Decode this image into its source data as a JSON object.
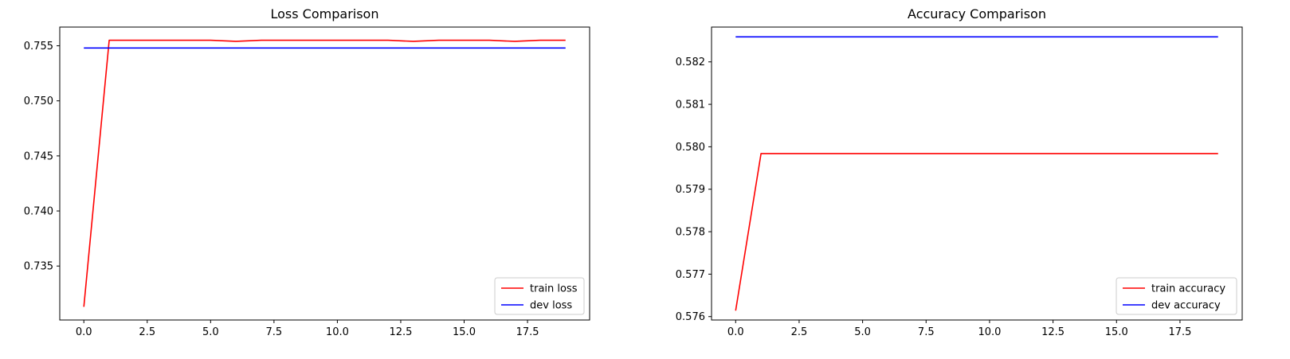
{
  "chart_data": [
    {
      "type": "line",
      "title": "Loss Comparison",
      "xlabel": "",
      "ylabel": "",
      "xlim": [
        -0.95,
        19.95
      ],
      "ylim": [
        0.7301,
        0.7567
      ],
      "xticks": [
        0.0,
        2.5,
        5.0,
        7.5,
        10.0,
        12.5,
        15.0,
        17.5
      ],
      "xtick_labels": [
        "0.0",
        "2.5",
        "5.0",
        "7.5",
        "10.0",
        "12.5",
        "15.0",
        "17.5"
      ],
      "yticks": [
        0.735,
        0.74,
        0.745,
        0.75,
        0.755
      ],
      "ytick_labels": [
        "0.735",
        "0.740",
        "0.745",
        "0.750",
        "0.755"
      ],
      "grid": false,
      "legend_position": "bottom-right",
      "x": [
        0,
        1,
        2,
        3,
        4,
        5,
        6,
        7,
        8,
        9,
        10,
        11,
        12,
        13,
        14,
        15,
        16,
        17,
        18,
        19
      ],
      "series": [
        {
          "name": "train loss",
          "color": "#ff0000",
          "values": [
            0.7313,
            0.7555,
            0.7555,
            0.7555,
            0.7555,
            0.7555,
            0.7554,
            0.7555,
            0.7555,
            0.7555,
            0.7555,
            0.7555,
            0.7555,
            0.7554,
            0.7555,
            0.7555,
            0.7555,
            0.7554,
            0.7555,
            0.7555
          ]
        },
        {
          "name": "dev loss",
          "color": "#0000ff",
          "values": [
            0.7548,
            0.7548,
            0.7548,
            0.7548,
            0.7548,
            0.7548,
            0.7548,
            0.7548,
            0.7548,
            0.7548,
            0.7548,
            0.7548,
            0.7548,
            0.7548,
            0.7548,
            0.7548,
            0.7548,
            0.7548,
            0.7548,
            0.7548
          ]
        }
      ]
    },
    {
      "type": "line",
      "title": "Accuracy Comparison",
      "xlabel": "",
      "ylabel": "",
      "xlim": [
        -0.95,
        19.95
      ],
      "ylim": [
        0.57592,
        0.58282
      ],
      "xticks": [
        0.0,
        2.5,
        5.0,
        7.5,
        10.0,
        12.5,
        15.0,
        17.5
      ],
      "xtick_labels": [
        "0.0",
        "2.5",
        "5.0",
        "7.5",
        "10.0",
        "12.5",
        "15.0",
        "17.5"
      ],
      "yticks": [
        0.576,
        0.577,
        0.578,
        0.579,
        0.58,
        0.581,
        0.582
      ],
      "ytick_labels": [
        "0.576",
        "0.577",
        "0.578",
        "0.579",
        "0.580",
        "0.581",
        "0.582"
      ],
      "grid": false,
      "legend_position": "bottom-right",
      "x": [
        0,
        1,
        2,
        3,
        4,
        5,
        6,
        7,
        8,
        9,
        10,
        11,
        12,
        13,
        14,
        15,
        16,
        17,
        18,
        19
      ],
      "series": [
        {
          "name": "train accuracy",
          "color": "#ff0000",
          "values": [
            0.57614,
            0.57984,
            0.57984,
            0.57984,
            0.57984,
            0.57984,
            0.57984,
            0.57984,
            0.57984,
            0.57984,
            0.57984,
            0.57984,
            0.57984,
            0.57984,
            0.57984,
            0.57984,
            0.57984,
            0.57984,
            0.57984,
            0.57984
          ]
        },
        {
          "name": "dev accuracy",
          "color": "#0000ff",
          "values": [
            0.58259,
            0.58259,
            0.58259,
            0.58259,
            0.58259,
            0.58259,
            0.58259,
            0.58259,
            0.58259,
            0.58259,
            0.58259,
            0.58259,
            0.58259,
            0.58259,
            0.58259,
            0.58259,
            0.58259,
            0.58259,
            0.58259,
            0.58259
          ]
        }
      ]
    }
  ]
}
